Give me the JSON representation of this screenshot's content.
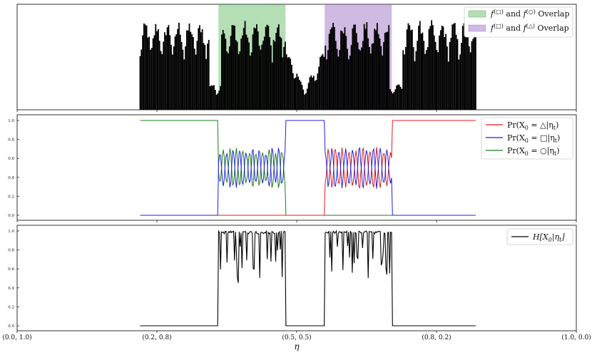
{
  "chart_data": [
    {
      "type": "bar",
      "panel": "histogram",
      "grid": false,
      "legend_position": "top-right",
      "shaded_regions": [
        {
          "label": "f^(□) and f^(○) Overlap",
          "x_range": [
            0.36,
            0.48
          ],
          "color": "#2ca02c"
        },
        {
          "label": "f^(□) and f^(△) Overlap",
          "x_range": [
            0.55,
            0.67
          ],
          "color": "#9467bd"
        }
      ],
      "x_range_data": [
        0.22,
        0.82
      ],
      "legend": [
        {
          "label": "f^(□) and f^(○) Overlap",
          "color": "#2ca02c"
        },
        {
          "label": "f^(□) and f^(△) Overlap",
          "color": "#9467bd"
        }
      ]
    },
    {
      "type": "line",
      "panel": "posterior",
      "ylim": [
        0.0,
        1.0
      ],
      "yticks": [
        "1.0",
        "0.8",
        "0.6",
        "0.4",
        "0.2",
        "0.0"
      ],
      "legend_position": "top-right",
      "series": [
        {
          "name": "Pr(X_0 = △|η_t)",
          "color": "#e41a1c"
        },
        {
          "name": "Pr(X_0 = □|η_t)",
          "color": "#1f1fdf"
        },
        {
          "name": "Pr(X_0 = ○|η_t)",
          "color": "#1a7f1a"
        }
      ],
      "x_range_data": [
        0.22,
        0.82
      ]
    },
    {
      "type": "line",
      "panel": "entropy",
      "ylim": [
        0.0,
        1.0
      ],
      "yticks": [
        "1.0",
        "0.8",
        "0.6",
        "0.4",
        "0.2",
        "0.0"
      ],
      "legend_position": "top-right",
      "series": [
        {
          "name": "H[X_0|η_t]",
          "color": "#000000"
        }
      ],
      "x_range_data": [
        0.22,
        0.82
      ]
    }
  ],
  "x_axis": {
    "label": "η",
    "ticks": [
      "(0.0, 1.0)",
      "(0.2, 0.8)",
      "(0.5, 0.5)",
      "(0.8, 0.2)",
      "(1.0, 0.0)"
    ],
    "tick_positions": [
      0.0,
      0.25,
      0.5,
      0.75,
      1.0
    ]
  },
  "legend1": {
    "item1_main": "f",
    "item1_sup": "(□)",
    "item1_mid": " and ",
    "item1_main2": "f",
    "item1_sup2": "(○)",
    "item1_tail": " Overlap",
    "item2_main": "f",
    "item2_sup": "(□)",
    "item2_mid": " and ",
    "item2_main2": "f",
    "item2_sup2": "(△)",
    "item2_tail": " Overlap"
  },
  "legend2": {
    "a": "Pr(X",
    "a_sub": "0",
    "a_tail1": " = △|η",
    "a_sub2": "t",
    "a_tail2": ")",
    "b": "Pr(X",
    "b_sub": "0",
    "b_tail1": " = □|η",
    "b_sub2": "t",
    "b_tail2": ")",
    "c": "Pr(X",
    "c_sub": "0",
    "c_tail1": " = ○|η",
    "c_sub2": "t",
    "c_tail2": ")"
  },
  "legend3": {
    "a": "H[X",
    "a_sub": "0",
    "a_tail1": "|η",
    "a_sub2": "t",
    "a_tail2": "]"
  },
  "colors": {
    "green_fill": "#2ca02c",
    "purple_fill": "#9467bd",
    "red": "#e41a1c",
    "blue": "#1f1fdf",
    "green_line": "#1a7f1a",
    "black": "#000000"
  }
}
